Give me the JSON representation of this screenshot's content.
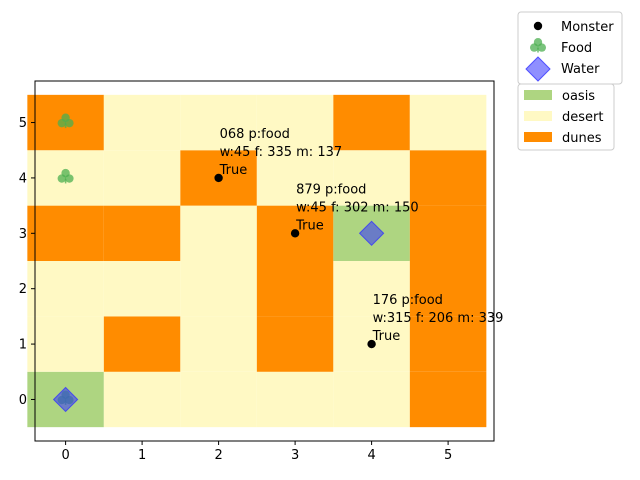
{
  "chart_data": {
    "type": "heatmap",
    "title": "",
    "xlabel": "",
    "ylabel": "",
    "xlim": [
      -0.4,
      5.6
    ],
    "ylim": [
      -0.75,
      5.75
    ],
    "x_ticks": [
      "0",
      "1",
      "2",
      "3",
      "4",
      "5"
    ],
    "y_ticks": [
      "0",
      "1",
      "2",
      "3",
      "4",
      "5"
    ],
    "terrain_colors": {
      "oasis": "#aed581",
      "desert": "#fff9c4",
      "dunes": "#ff8c00"
    },
    "grid": [
      [
        "oasis",
        "desert",
        "desert",
        "desert",
        "desert",
        "dunes"
      ],
      [
        "desert",
        "dunes",
        "desert",
        "dunes",
        "desert",
        "dunes"
      ],
      [
        "desert",
        "desert",
        "desert",
        "dunes",
        "desert",
        "dunes"
      ],
      [
        "dunes",
        "dunes",
        "desert",
        "dunes",
        "oasis",
        "dunes"
      ],
      [
        "desert",
        "desert",
        "dunes",
        "desert",
        "desert",
        "dunes"
      ],
      [
        "dunes",
        "desert",
        "desert",
        "desert",
        "dunes",
        "desert"
      ]
    ],
    "monsters": [
      {
        "x": 2,
        "y": 4,
        "lines": [
          "068 p:food",
          "w:45 f: 335 m: 137",
          "True"
        ]
      },
      {
        "x": 3,
        "y": 3,
        "lines": [
          "879 p:food",
          "w:45 f: 302 m: 150",
          "True"
        ]
      },
      {
        "x": 4,
        "y": 1,
        "lines": [
          "176 p:food",
          "w:315 f: 206 m: 339",
          "True"
        ]
      }
    ],
    "food": [
      {
        "x": 0,
        "y": 5
      },
      {
        "x": 0,
        "y": 4
      },
      {
        "x": 0,
        "y": 0
      }
    ],
    "water": [
      {
        "x": 0,
        "y": 0
      },
      {
        "x": 4,
        "y": 3
      }
    ],
    "legend_placement": "outside upper right",
    "legend_markers": [
      {
        "label": "Monster",
        "kind": "monster",
        "color": "#000000"
      },
      {
        "label": "Food",
        "kind": "food",
        "color": "#4caf50"
      },
      {
        "label": "Water",
        "kind": "water",
        "color": "#3333ff"
      }
    ],
    "legend_patches": [
      {
        "label": "oasis",
        "terrain": "oasis"
      },
      {
        "label": "desert",
        "terrain": "desert"
      },
      {
        "label": "dunes",
        "terrain": "dunes"
      }
    ]
  }
}
